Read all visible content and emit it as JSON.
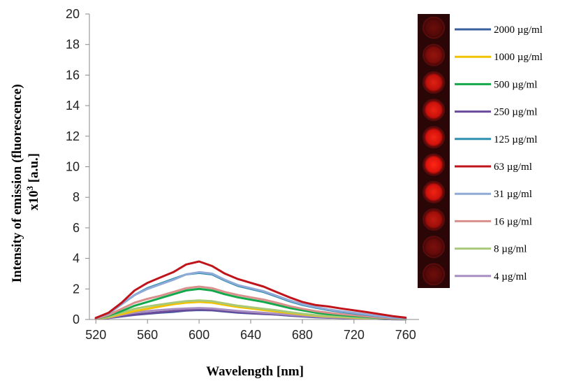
{
  "chart_data": {
    "type": "line",
    "xlabel": "Wavelength [nm]",
    "ylabel_line1": "Intensity of emission (fluorescence)",
    "ylabel_line2": "x10",
    "ylabel_sup": "3",
    "ylabel_tail": " [a.u.]",
    "xlim": [
      515,
      765
    ],
    "ylim": [
      0,
      20
    ],
    "xticks": [
      "520",
      "560",
      "600",
      "640",
      "680",
      "720",
      "760"
    ],
    "yticks": [
      "0",
      "2",
      "4",
      "6",
      "8",
      "10",
      "12",
      "14",
      "16",
      "18",
      "20"
    ],
    "x": [
      520,
      530,
      540,
      550,
      560,
      570,
      580,
      590,
      600,
      610,
      620,
      630,
      640,
      650,
      660,
      670,
      680,
      690,
      700,
      710,
      720,
      730,
      740,
      750,
      760
    ],
    "legend_position": "right",
    "series": [
      {
        "name": "2000 µg/ml",
        "color": "#3a5f9e",
        "values": [
          0.05,
          0.1,
          0.2,
          0.3,
          0.38,
          0.45,
          0.5,
          0.58,
          0.62,
          0.6,
          0.52,
          0.45,
          0.4,
          0.36,
          0.32,
          0.25,
          0.2,
          0.15,
          0.12,
          0.1,
          0.08,
          0.06,
          0.04,
          0.02,
          0.01
        ]
      },
      {
        "name": "1000 µg/ml",
        "color": "#f2c200",
        "values": [
          0.05,
          0.15,
          0.35,
          0.55,
          0.7,
          0.85,
          1.0,
          1.1,
          1.15,
          1.1,
          0.95,
          0.82,
          0.72,
          0.62,
          0.52,
          0.42,
          0.33,
          0.25,
          0.2,
          0.16,
          0.12,
          0.09,
          0.06,
          0.04,
          0.02
        ]
      },
      {
        "name": "500 µg/ml",
        "color": "#13a84a",
        "values": [
          0.05,
          0.25,
          0.55,
          0.9,
          1.15,
          1.4,
          1.65,
          1.9,
          2.0,
          1.9,
          1.65,
          1.45,
          1.3,
          1.15,
          0.95,
          0.75,
          0.6,
          0.45,
          0.35,
          0.28,
          0.22,
          0.16,
          0.11,
          0.07,
          0.04
        ]
      },
      {
        "name": "250 µg/ml",
        "color": "#6a4a9a",
        "values": [
          0.05,
          0.1,
          0.22,
          0.32,
          0.4,
          0.48,
          0.55,
          0.6,
          0.65,
          0.62,
          0.55,
          0.48,
          0.42,
          0.38,
          0.33,
          0.27,
          0.22,
          0.17,
          0.13,
          0.1,
          0.08,
          0.06,
          0.04,
          0.02,
          0.01
        ]
      },
      {
        "name": "125 µg/ml",
        "color": "#2e8fb0",
        "values": [
          0.1,
          0.4,
          1.0,
          1.6,
          2.05,
          2.35,
          2.65,
          2.95,
          3.05,
          2.95,
          2.55,
          2.2,
          2.0,
          1.8,
          1.5,
          1.2,
          0.95,
          0.78,
          0.62,
          0.5,
          0.4,
          0.3,
          0.2,
          0.12,
          0.06
        ]
      },
      {
        "name": "63 µg/ml",
        "color": "#c0141b",
        "values": [
          0.1,
          0.45,
          1.1,
          1.9,
          2.4,
          2.75,
          3.1,
          3.6,
          3.8,
          3.5,
          3.0,
          2.65,
          2.4,
          2.15,
          1.8,
          1.45,
          1.15,
          0.95,
          0.85,
          0.72,
          0.6,
          0.48,
          0.35,
          0.22,
          0.12
        ]
      },
      {
        "name": "31 µg/ml",
        "color": "#8faad6",
        "values": [
          0.1,
          0.4,
          1.0,
          1.6,
          2.0,
          2.3,
          2.6,
          2.95,
          3.1,
          3.0,
          2.6,
          2.25,
          2.05,
          1.85,
          1.55,
          1.25,
          1.0,
          0.82,
          0.66,
          0.54,
          0.44,
          0.33,
          0.22,
          0.13,
          0.06
        ]
      },
      {
        "name": "16 µg/ml",
        "color": "#d9908c",
        "values": [
          0.05,
          0.3,
          0.7,
          1.1,
          1.35,
          1.55,
          1.8,
          2.05,
          2.15,
          2.05,
          1.8,
          1.6,
          1.45,
          1.3,
          1.1,
          0.88,
          0.7,
          0.55,
          0.44,
          0.35,
          0.28,
          0.2,
          0.13,
          0.08,
          0.04
        ]
      },
      {
        "name": "8 µg/ml",
        "color": "#a9c97a",
        "values": [
          0.05,
          0.18,
          0.45,
          0.7,
          0.85,
          0.98,
          1.1,
          1.2,
          1.25,
          1.2,
          1.05,
          0.9,
          0.8,
          0.7,
          0.6,
          0.48,
          0.38,
          0.29,
          0.23,
          0.18,
          0.14,
          0.1,
          0.07,
          0.04,
          0.02
        ]
      },
      {
        "name": "4 µg/ml",
        "color": "#a88fc2",
        "values": [
          0.05,
          0.12,
          0.3,
          0.45,
          0.55,
          0.62,
          0.68,
          0.72,
          0.75,
          0.72,
          0.64,
          0.56,
          0.5,
          0.44,
          0.38,
          0.31,
          0.25,
          0.19,
          0.15,
          0.12,
          0.09,
          0.07,
          0.05,
          0.03,
          0.02
        ]
      }
    ],
    "inset_wells": [
      {
        "glow": 0.1
      },
      {
        "glow": 0.35
      },
      {
        "glow": 0.8
      },
      {
        "glow": 0.88
      },
      {
        "glow": 0.93
      },
      {
        "glow": 1.0
      },
      {
        "glow": 0.9
      },
      {
        "glow": 0.6
      },
      {
        "glow": 0.2
      },
      {
        "glow": 0.12
      }
    ]
  }
}
